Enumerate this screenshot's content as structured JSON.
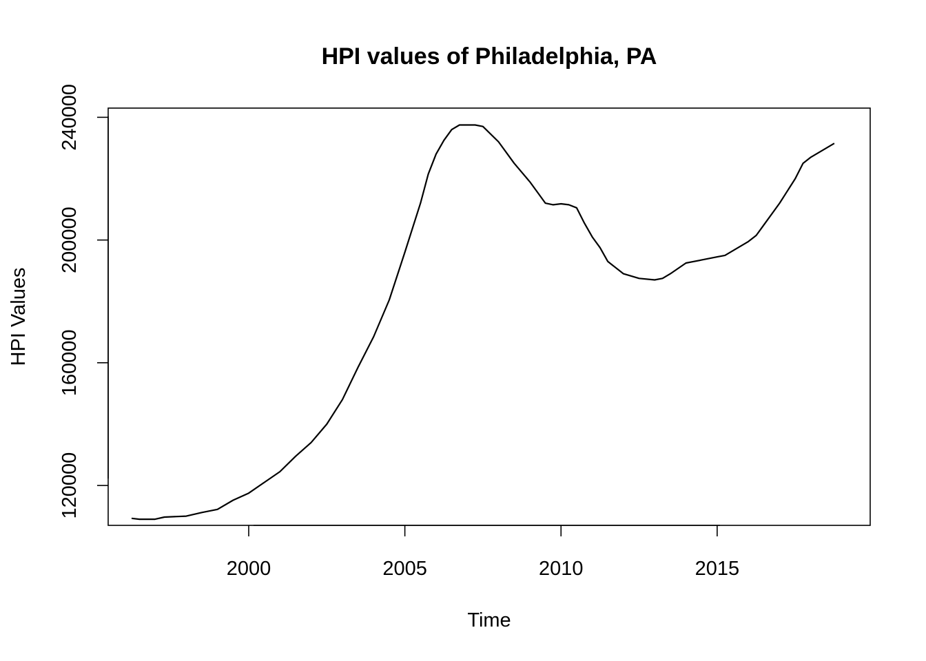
{
  "chart_data": {
    "type": "line",
    "title": "HPI values of Philadelphia, PA",
    "xlabel": "Time",
    "ylabel": "HPI Values",
    "xlim": [
      1995.5,
      2019.9
    ],
    "ylim": [
      107000,
      243000
    ],
    "x_ticks": [
      2000,
      2005,
      2010,
      2015
    ],
    "y_ticks": [
      120000,
      160000,
      200000,
      240000
    ],
    "x_tick_labels": [
      "2000",
      "2005",
      "2010",
      "2015"
    ],
    "y_tick_labels": [
      "120000",
      "160000",
      "200000",
      "240000"
    ],
    "grid": false,
    "legend": "none",
    "series": [
      {
        "color": "#000000",
        "x": [
          1996.25,
          1996.5,
          1997.0,
          1997.3,
          1998.0,
          1998.5,
          1999.0,
          1999.5,
          2000.0,
          2000.5,
          2001.0,
          2001.5,
          2002.0,
          2002.5,
          2003.0,
          2003.5,
          2004.0,
          2004.5,
          2005.0,
          2005.5,
          2005.75,
          2006.0,
          2006.25,
          2006.5,
          2006.75,
          2007.0,
          2007.25,
          2007.5,
          2008.0,
          2008.5,
          2009.0,
          2009.25,
          2009.5,
          2009.75,
          2010.0,
          2010.25,
          2010.5,
          2010.75,
          2011.0,
          2011.25,
          2011.5,
          2012.0,
          2012.5,
          2013.0,
          2013.25,
          2013.5,
          2014.0,
          2014.5,
          2015.0,
          2015.25,
          2015.5,
          2016.0,
          2016.25,
          2016.5,
          2017.0,
          2017.5,
          2017.75,
          2018.0,
          2018.5,
          2018.75
        ],
        "y": [
          109300,
          109000,
          109000,
          109700,
          110000,
          111200,
          112200,
          115200,
          117500,
          121000,
          124500,
          129500,
          134000,
          140000,
          148000,
          158500,
          168500,
          180500,
          196000,
          212000,
          221500,
          228000,
          232500,
          236000,
          237500,
          237500,
          237500,
          237000,
          232000,
          225000,
          219000,
          215500,
          212000,
          211500,
          211800,
          211500,
          210500,
          205500,
          201000,
          197500,
          193000,
          189000,
          187500,
          187000,
          187500,
          189000,
          192500,
          193500,
          194500,
          195000,
          196500,
          199500,
          201500,
          205000,
          212000,
          220000,
          225000,
          227000,
          230000,
          231500
        ]
      }
    ]
  }
}
